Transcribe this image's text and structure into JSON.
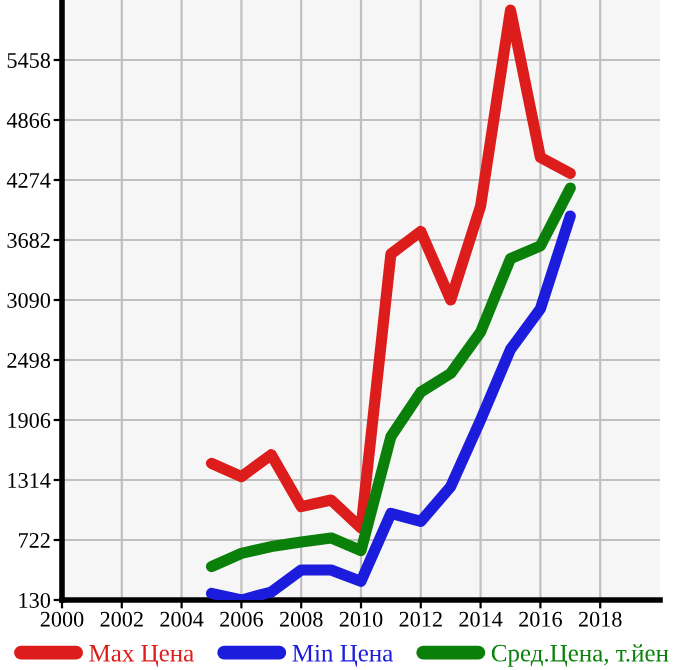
{
  "chart_data": {
    "type": "line",
    "x": [
      2005,
      2006,
      2007,
      2008,
      2009,
      2010,
      2011,
      2012,
      2013,
      2014,
      2015,
      2016,
      2017
    ],
    "series": [
      {
        "name": "Max Цена",
        "color": "#dd1c1c",
        "values": [
          1478,
          1347,
          1564,
          1051,
          1117,
          840,
          3544,
          3767,
          3090,
          4017,
          5950,
          4497,
          4339
        ]
      },
      {
        "name": "Min Цена",
        "color": "#1c1cdd",
        "values": [
          195,
          130,
          209,
          426,
          426,
          314,
          984,
          905,
          1249,
          1906,
          2603,
          3004,
          3919
        ]
      },
      {
        "name": "Сред.Цена, т.йен",
        "color": "#0a800a",
        "values": [
          460,
          590,
          657,
          702,
          742,
          617,
          1742,
          2182,
          2366,
          2774,
          3498,
          3623,
          4195
        ]
      }
    ],
    "xlim": [
      2000,
      2020
    ],
    "xticks": [
      2000,
      2002,
      2004,
      2006,
      2008,
      2010,
      2012,
      2014,
      2016,
      2018
    ],
    "ylim": [
      130,
      6050
    ],
    "yticks": [
      130,
      722,
      1314,
      1906,
      2498,
      3090,
      3682,
      4274,
      4866,
      5458
    ],
    "grid": true,
    "legend": "bottom",
    "marker": "none",
    "line_style": "solid"
  }
}
